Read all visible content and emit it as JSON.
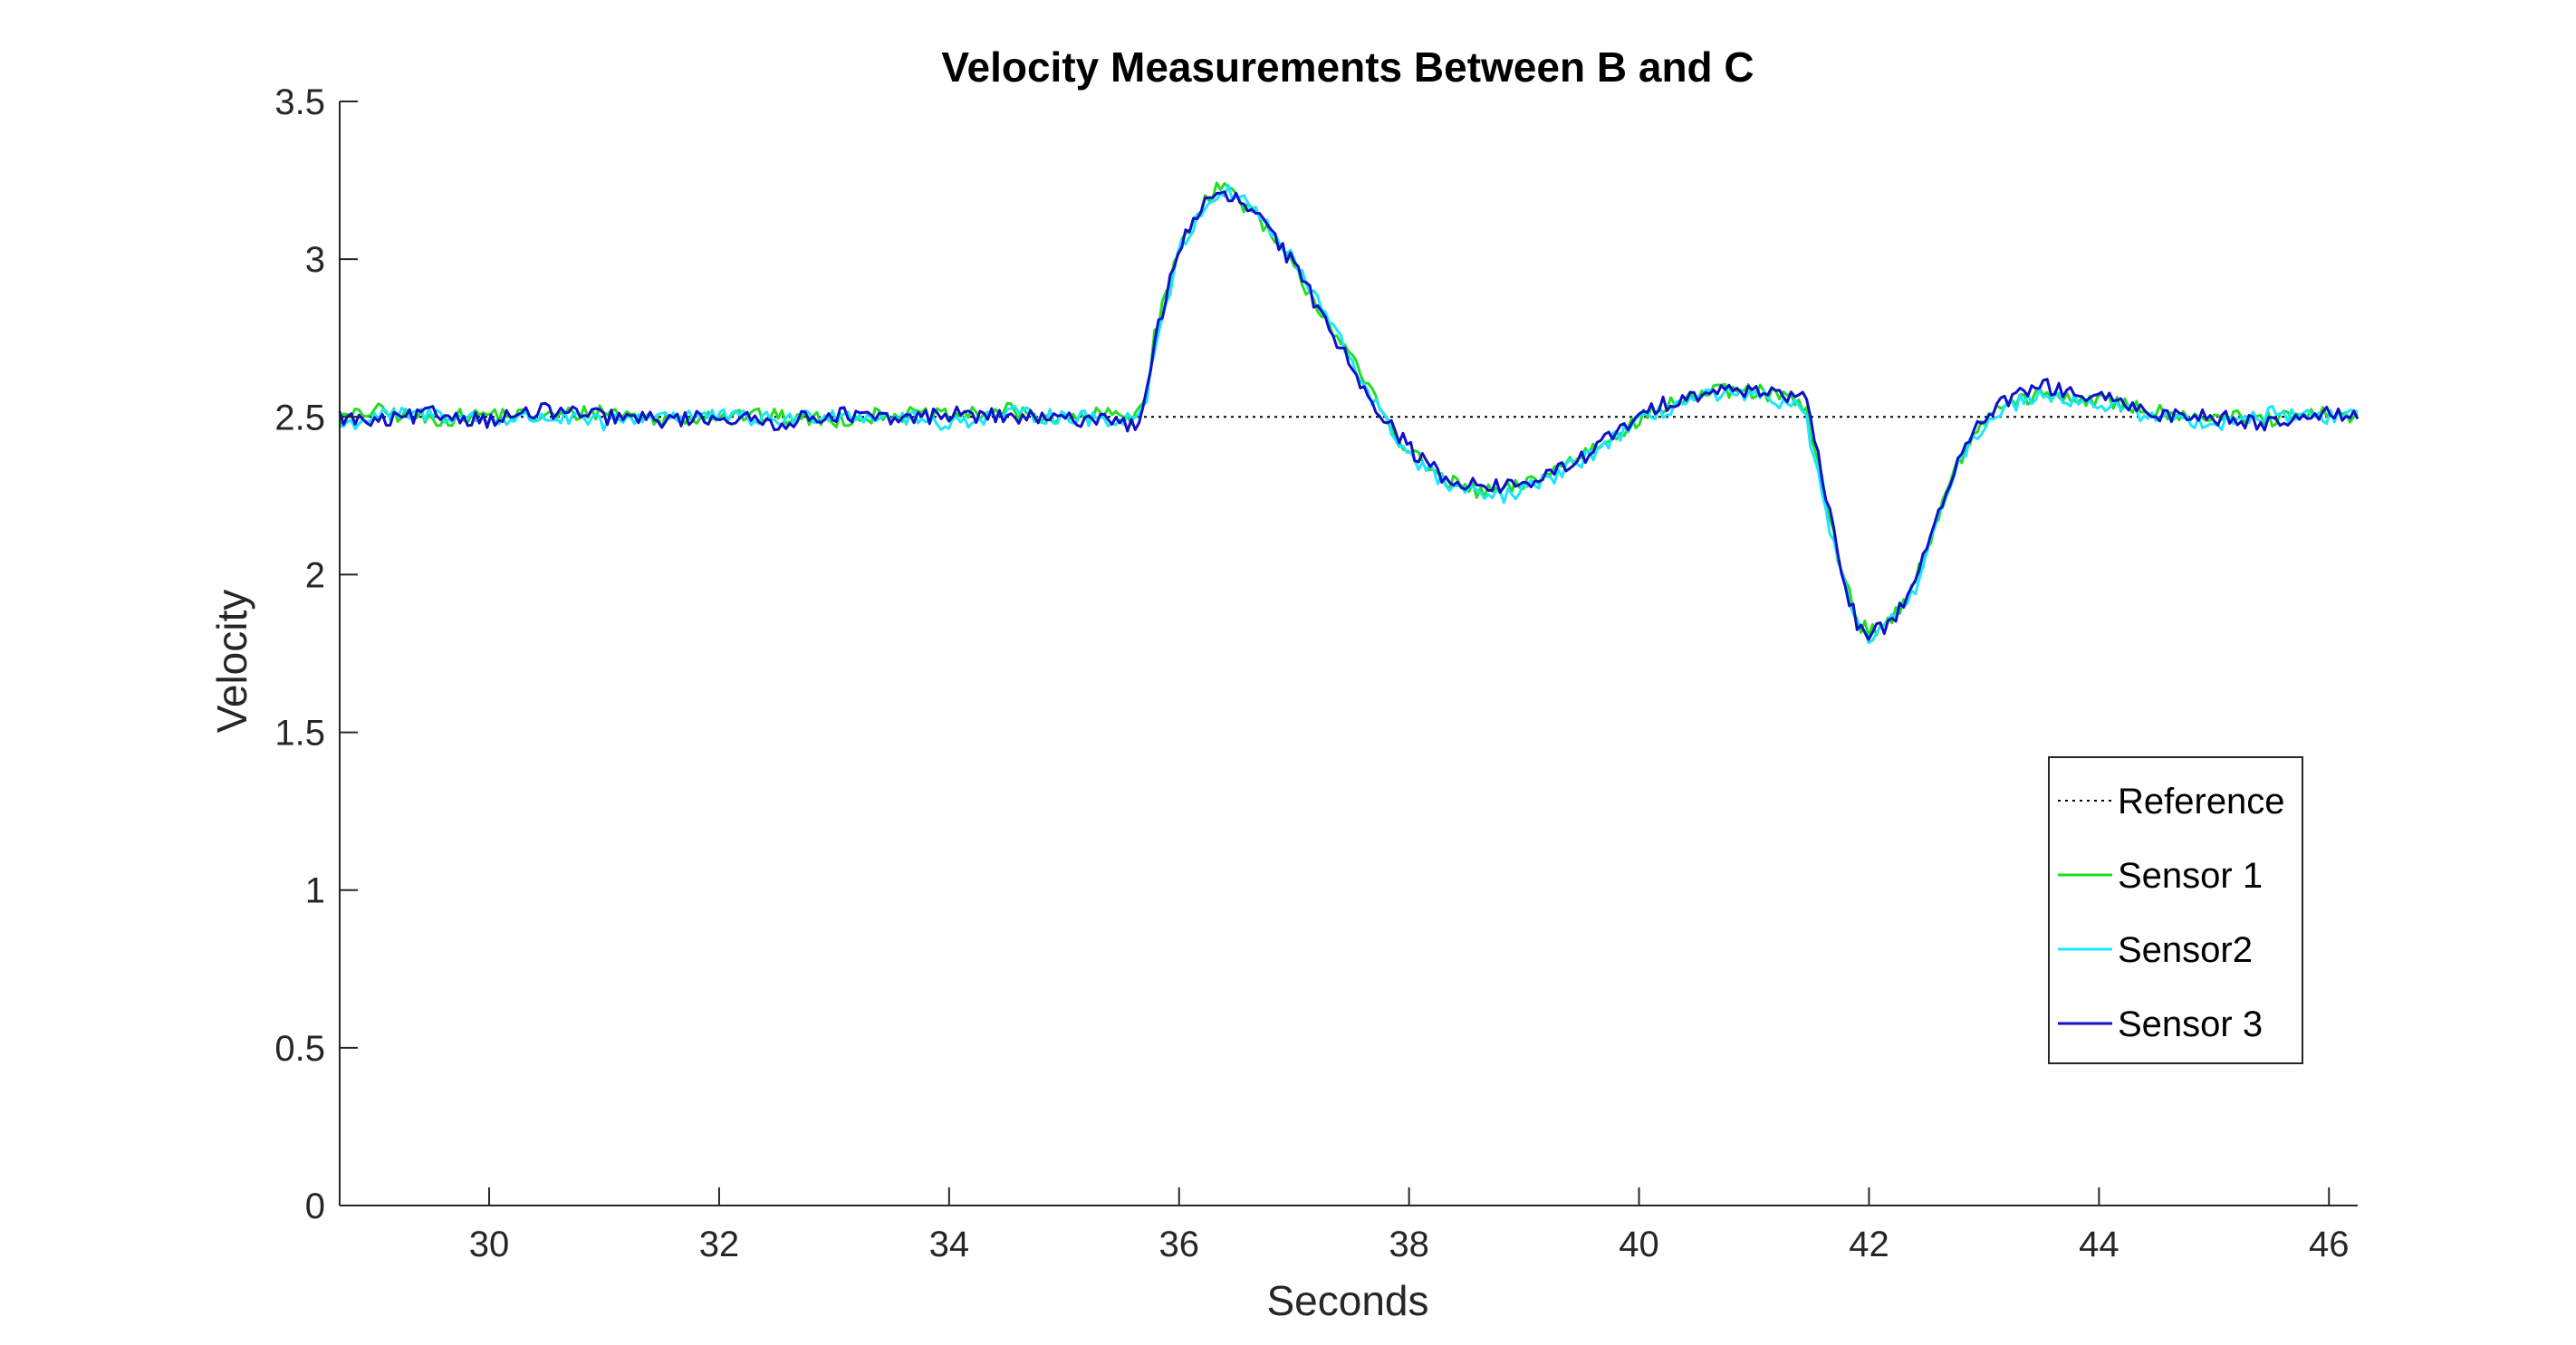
{
  "chart_data": {
    "type": "line",
    "title": "Velocity Measurements Between B and C",
    "xlabel": "Seconds",
    "ylabel": "Velocity",
    "xlim": [
      28.7,
      46.25
    ],
    "ylim": [
      0,
      3.5
    ],
    "xticks": [
      30,
      32,
      34,
      36,
      38,
      40,
      42,
      44,
      46
    ],
    "yticks": [
      0,
      0.5,
      1,
      1.5,
      2,
      2.5,
      3,
      3.5
    ],
    "xtick_labels": [
      "30",
      "32",
      "34",
      "36",
      "38",
      "40",
      "42",
      "44",
      "46"
    ],
    "ytick_labels": [
      "0",
      "0.5",
      "1",
      "1.5",
      "2",
      "2.5",
      "3",
      "3.5"
    ],
    "grid": false,
    "legend_position": "bottom-right",
    "series": [
      {
        "name": "Reference",
        "color": "#000000",
        "style": "dotted",
        "x": [
          28.7,
          46.25
        ],
        "y": [
          2.5,
          2.5
        ]
      },
      {
        "name": "Sensor 1",
        "color": "#22dd22",
        "style": "solid",
        "x": [
          28.7,
          29.0,
          29.5,
          30.0,
          30.5,
          31.0,
          31.5,
          32.0,
          32.5,
          33.0,
          33.5,
          34.0,
          34.5,
          35.0,
          35.4,
          35.6,
          35.7,
          35.8,
          36.0,
          36.2,
          36.35,
          36.5,
          36.7,
          37.0,
          37.3,
          37.6,
          37.8,
          38.0,
          38.3,
          38.6,
          38.9,
          39.2,
          39.5,
          39.8,
          40.1,
          40.4,
          40.7,
          41.0,
          41.3,
          41.45,
          41.6,
          41.75,
          41.9,
          42.0,
          42.2,
          42.4,
          42.6,
          42.8,
          43.0,
          43.2,
          43.5,
          43.8,
          44.0,
          44.5,
          45.0,
          45.5,
          46.0,
          46.25
        ],
        "y": [
          2.49,
          2.52,
          2.49,
          2.51,
          2.5,
          2.52,
          2.49,
          2.51,
          2.5,
          2.49,
          2.51,
          2.5,
          2.52,
          2.49,
          2.51,
          2.5,
          2.55,
          2.78,
          3.03,
          3.18,
          3.24,
          3.2,
          3.12,
          2.97,
          2.8,
          2.62,
          2.5,
          2.39,
          2.3,
          2.26,
          2.27,
          2.32,
          2.38,
          2.45,
          2.51,
          2.56,
          2.58,
          2.58,
          2.56,
          2.52,
          2.28,
          2.03,
          1.85,
          1.82,
          1.86,
          1.97,
          2.19,
          2.37,
          2.49,
          2.54,
          2.57,
          2.56,
          2.55,
          2.52,
          2.5,
          2.49,
          2.51,
          2.5
        ]
      },
      {
        "name": "Sensor2",
        "color": "#19e6ff",
        "style": "solid",
        "x": [
          28.7,
          29.0,
          29.5,
          30.0,
          30.5,
          31.0,
          31.5,
          32.0,
          32.5,
          33.0,
          33.5,
          34.0,
          34.5,
          35.0,
          35.4,
          35.6,
          35.7,
          35.8,
          36.0,
          36.2,
          36.35,
          36.5,
          36.7,
          37.0,
          37.3,
          37.6,
          37.8,
          38.0,
          38.3,
          38.6,
          38.9,
          39.2,
          39.5,
          39.8,
          40.1,
          40.4,
          40.7,
          41.0,
          41.3,
          41.45,
          41.6,
          41.75,
          41.9,
          42.0,
          42.2,
          42.4,
          42.6,
          42.8,
          43.0,
          43.2,
          43.5,
          43.8,
          44.0,
          44.5,
          45.0,
          45.5,
          46.0,
          46.25
        ],
        "y": [
          2.47,
          2.5,
          2.51,
          2.49,
          2.5,
          2.48,
          2.51,
          2.5,
          2.49,
          2.51,
          2.5,
          2.48,
          2.51,
          2.5,
          2.49,
          2.5,
          2.53,
          2.74,
          3.02,
          3.16,
          3.21,
          3.21,
          3.14,
          2.99,
          2.81,
          2.61,
          2.48,
          2.38,
          2.29,
          2.25,
          2.25,
          2.3,
          2.36,
          2.44,
          2.5,
          2.55,
          2.57,
          2.56,
          2.55,
          2.5,
          2.24,
          2.0,
          1.83,
          1.8,
          1.85,
          1.96,
          2.18,
          2.36,
          2.48,
          2.53,
          2.58,
          2.55,
          2.54,
          2.5,
          2.48,
          2.51,
          2.5,
          2.51
        ]
      },
      {
        "name": "Sensor 3",
        "color": "#1010c8",
        "style": "solid",
        "x": [
          28.7,
          29.0,
          29.5,
          30.0,
          30.5,
          31.0,
          31.5,
          32.0,
          32.5,
          33.0,
          33.5,
          34.0,
          34.5,
          35.0,
          35.4,
          35.6,
          35.7,
          35.8,
          36.0,
          36.2,
          36.35,
          36.5,
          36.7,
          37.0,
          37.3,
          37.6,
          37.8,
          38.0,
          38.3,
          38.6,
          38.9,
          39.2,
          39.5,
          39.8,
          40.1,
          40.4,
          40.7,
          41.0,
          41.3,
          41.45,
          41.6,
          41.75,
          41.9,
          42.0,
          42.2,
          42.4,
          42.6,
          42.8,
          43.0,
          43.2,
          43.5,
          43.8,
          44.0,
          44.5,
          45.0,
          45.5,
          46.0,
          46.25
        ],
        "y": [
          2.5,
          2.48,
          2.51,
          2.49,
          2.52,
          2.5,
          2.49,
          2.5,
          2.48,
          2.51,
          2.49,
          2.51,
          2.5,
          2.49,
          2.5,
          2.47,
          2.52,
          2.76,
          3.04,
          3.17,
          3.2,
          3.19,
          3.13,
          2.98,
          2.79,
          2.6,
          2.49,
          2.4,
          2.31,
          2.28,
          2.28,
          2.31,
          2.37,
          2.45,
          2.52,
          2.57,
          2.58,
          2.59,
          2.57,
          2.55,
          2.3,
          2.02,
          1.84,
          1.81,
          1.85,
          1.98,
          2.2,
          2.37,
          2.5,
          2.55,
          2.6,
          2.57,
          2.56,
          2.51,
          2.5,
          2.48,
          2.52,
          2.49
        ]
      }
    ]
  }
}
